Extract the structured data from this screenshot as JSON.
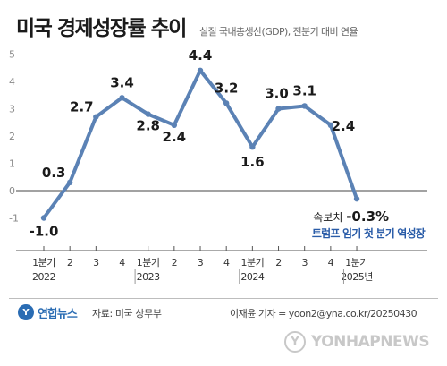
{
  "header": {
    "title": "미국 경제성장률 추이",
    "subtitle": "실질 국내총생산(GDP), 전분기 대비 연율"
  },
  "chart_data": {
    "type": "line",
    "x_categories": [
      "1분기",
      "2",
      "3",
      "4",
      "1분기",
      "2",
      "3",
      "4",
      "1분기",
      "2",
      "3",
      "4",
      "1분기"
    ],
    "year_labels": [
      {
        "index": 0,
        "label": "2022"
      },
      {
        "index": 4,
        "label": "2023"
      },
      {
        "index": 8,
        "label": "2024"
      },
      {
        "index": 12,
        "label": "2025년"
      }
    ],
    "series": [
      {
        "values": [
          -1.0,
          0.3,
          2.7,
          3.4,
          2.8,
          2.4,
          4.4,
          3.2,
          1.6,
          3.0,
          3.1,
          2.4,
          -0.3
        ]
      }
    ],
    "data_labels": [
      "-1.0",
      "0.3",
      "2.7",
      "3.4",
      "2.8",
      "2.4",
      "4.4",
      "3.2",
      "1.6",
      "3.0",
      "3.1",
      "2.4",
      "-0.3%"
    ],
    "y_ticks": [
      -1,
      0,
      1,
      2,
      3,
      4,
      5
    ],
    "ylim": [
      -1.5,
      5
    ],
    "grid": false,
    "line_color": "#5b82b5",
    "annotation": {
      "prefix": "속보치",
      "note": "트럼프 임기 첫 분기 역성장",
      "note_color": "#2a5ca8"
    }
  },
  "footer": {
    "logo_text": "연합뉴스",
    "source": "자료: 미국 상무부",
    "credit": "이재윤 기자 = yoon2@yna.co.kr/20250430",
    "watermark": "YONHAPNEWS"
  }
}
